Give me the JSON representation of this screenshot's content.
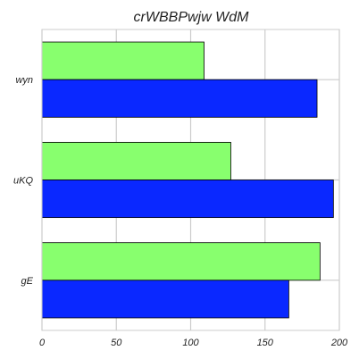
{
  "chart_data": {
    "type": "bar",
    "orientation": "horizontal",
    "title": "crWBBPwjw WdM",
    "xlabel": "",
    "ylabel": "",
    "categories": [
      "wyn",
      "uKQ",
      "gE"
    ],
    "series": [
      {
        "values": [
          109,
          127,
          187
        ],
        "color": "#88ff6e"
      },
      {
        "values": [
          185,
          196,
          166
        ],
        "color": "#0a28ff"
      }
    ],
    "xlim": [
      0,
      200
    ],
    "xticks": [
      0,
      50,
      100,
      150,
      200
    ],
    "grid": true,
    "legend": "none"
  }
}
